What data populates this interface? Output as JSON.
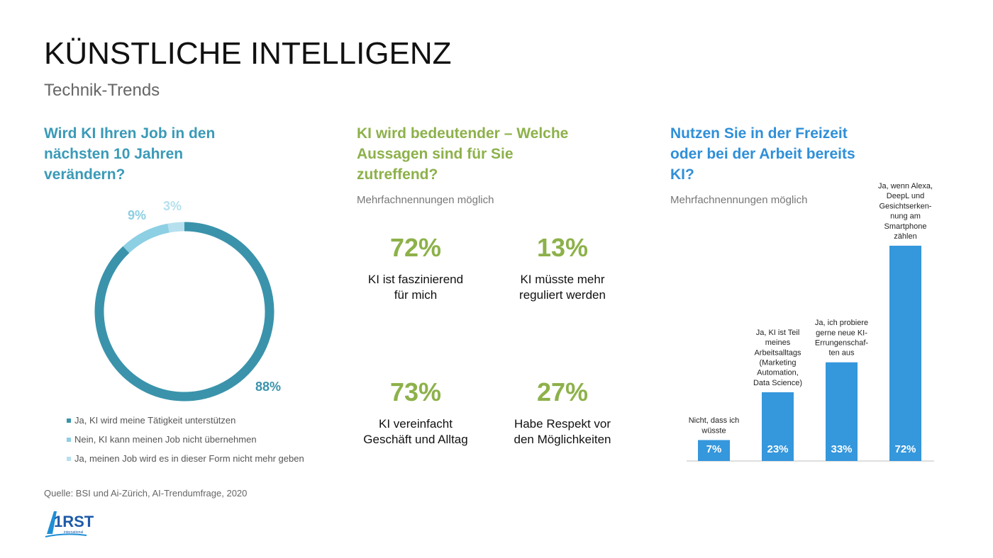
{
  "header": {
    "title": "KÜNSTLICHE INTELLIGENZ",
    "subtitle": "Technik-Trends"
  },
  "section1": {
    "question": "Wird KI Ihren Job in den nächsten 10 Jahren verändern?"
  },
  "section2": {
    "question": "KI wird bedeutender – Welche Aussagen sind für Sie zutreffend?",
    "note": "Mehrfachnennungen möglich",
    "stats": [
      {
        "value": "72%",
        "label_lines": [
          "KI ist faszinierend",
          "für mich"
        ]
      },
      {
        "value": "13%",
        "label_lines": [
          "KI müsste mehr",
          "reguliert werden"
        ]
      },
      {
        "value": "73%",
        "label_lines": [
          "KI vereinfacht",
          "Geschäft und Alltag"
        ]
      },
      {
        "value": "27%",
        "label_lines": [
          "Habe Respekt vor",
          "den Möglichkeiten"
        ]
      }
    ]
  },
  "section3": {
    "question": "Nutzen Sie in der Freizeit oder bei der Arbeit bereits KI?",
    "note": "Mehrfachnennungen möglich"
  },
  "chart_data": [
    {
      "type": "pie",
      "variant": "donut",
      "values": [
        88,
        9,
        3
      ],
      "value_labels": [
        "88%",
        "9%",
        "3%"
      ],
      "legend": [
        "Ja, KI wird meine Tätigkeit unterstützen",
        "Nein, KI kann meinen Job nicht übernehmen",
        "Ja, meinen Job wird es in dieser Form nicht mehr geben"
      ],
      "colors": [
        "#3a93ab",
        "#8dcfe3",
        "#b6e0ee"
      ],
      "legend_position": "bottom"
    },
    {
      "type": "bar",
      "categories": [
        [
          "Nicht, dass ich",
          "wüsste"
        ],
        [
          "Ja, KI ist Teil",
          "meines",
          "Arbeitsalltags",
          "(Marketing",
          "Automation,",
          "Data Science)"
        ],
        [
          "Ja, ich probiere",
          "gerne neue KI-",
          "Errungenschaf-",
          "ten aus"
        ],
        [
          "Ja, wenn Alexa,",
          "DeepL und",
          "Gesichtserken-",
          "nung am",
          "Smartphone",
          "zählen"
        ]
      ],
      "values": [
        7,
        23,
        33,
        72
      ],
      "value_labels": [
        "7%",
        "23%",
        "33%",
        "72%"
      ],
      "color": "#3597dc",
      "grid": false
    }
  ],
  "footer": {
    "source": "Quelle: BSI und Ai-Zürich, AI-Trendumfrage, 2020"
  },
  "logo": {
    "wordmark": "1RST",
    "tagline": "international"
  }
}
